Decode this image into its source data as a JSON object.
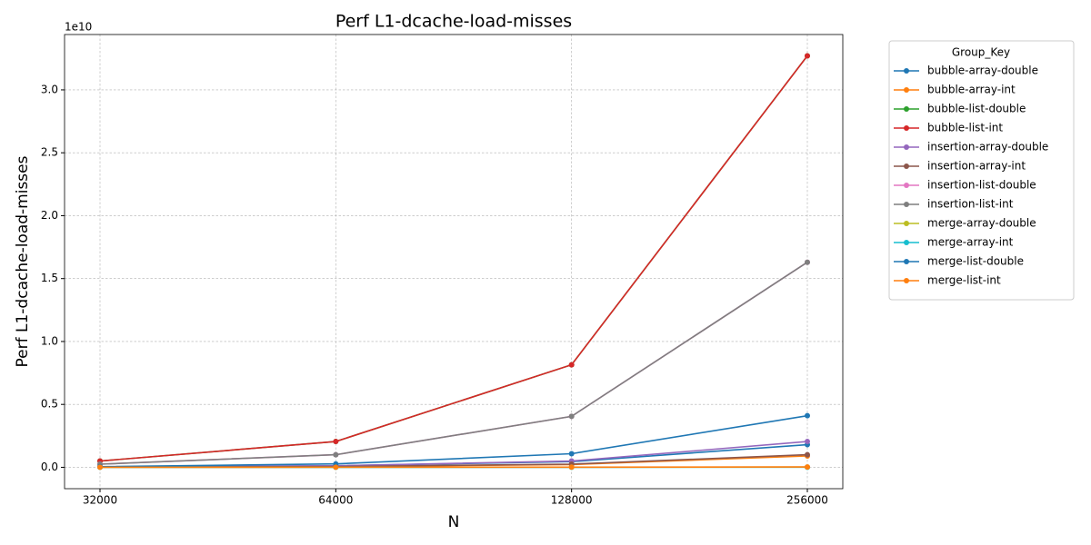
{
  "chart_data": {
    "type": "line",
    "title": "Perf L1-dcache-load-misses",
    "x_label": "N",
    "y_label": "Perf L1-dcache-load-misses",
    "y_offset_label": "1e10",
    "categories": [
      "32000",
      "64000",
      "128000",
      "256000"
    ],
    "ylim": [
      -0.17,
      3.44
    ],
    "yticks": [
      {
        "value": 0,
        "label": "0.0"
      },
      0.5,
      {
        "value": 1,
        "label": "1.0"
      },
      1.5,
      {
        "value": 2,
        "label": "2.0"
      },
      2.5,
      {
        "value": 3,
        "label": "3.0"
      }
    ],
    "grid": true,
    "legend_title": "Group_Key",
    "legend_position": "outside-upper-right",
    "series": [
      {
        "name": "bubble-array-double",
        "color": "#1f77b4",
        "values": [
          0.003,
          0.012,
          0.045,
          0.18
        ]
      },
      {
        "name": "bubble-array-int",
        "color": "#ff7f0e",
        "values": [
          0.0015,
          0.006,
          0.022,
          0.09
        ]
      },
      {
        "name": "bubble-list-double",
        "color": "#2ca02c",
        "values": [
          0.05,
          0.205,
          0.815,
          3.27
        ]
      },
      {
        "name": "bubble-list-int",
        "color": "#d62728",
        "values": [
          0.05,
          0.205,
          0.815,
          3.27
        ]
      },
      {
        "name": "insertion-array-double",
        "color": "#9467bd",
        "values": [
          0.003,
          0.012,
          0.05,
          0.205
        ]
      },
      {
        "name": "insertion-array-int",
        "color": "#8c564b",
        "values": [
          0.0015,
          0.006,
          0.025,
          0.1
        ]
      },
      {
        "name": "insertion-list-double",
        "color": "#e377c2",
        "values": [
          0.025,
          0.1,
          0.405,
          1.63
        ]
      },
      {
        "name": "insertion-list-int",
        "color": "#7f7f7f",
        "values": [
          0.025,
          0.1,
          0.405,
          1.63
        ]
      },
      {
        "name": "merge-array-double",
        "color": "#bcbd22",
        "values": [
          0.0002,
          0.0004,
          0.0008,
          0.0016
        ]
      },
      {
        "name": "merge-array-int",
        "color": "#17becf",
        "values": [
          0.0001,
          0.0002,
          0.0004,
          0.0008
        ]
      },
      {
        "name": "merge-list-double",
        "color": "#1f77b4",
        "values": [
          0.005,
          0.027,
          0.108,
          0.41
        ]
      },
      {
        "name": "merge-list-int",
        "color": "#ff7f0e",
        "values": [
          0.0003,
          0.0006,
          0.0012,
          0.0025
        ]
      }
    ]
  }
}
